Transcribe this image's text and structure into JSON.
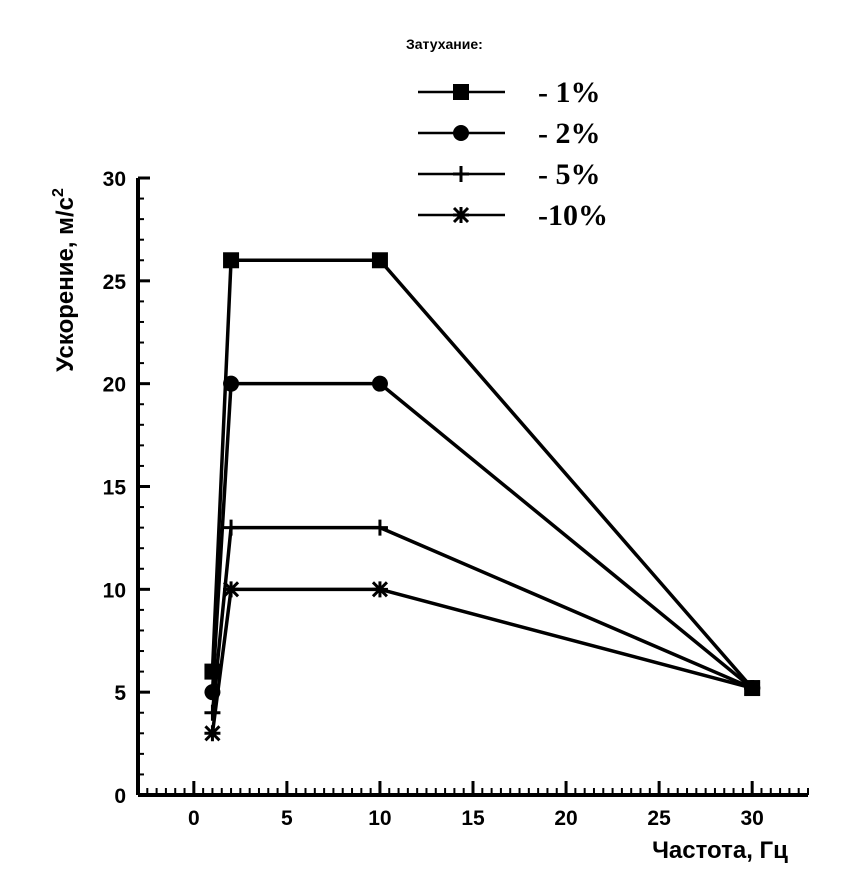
{
  "chart_data": {
    "type": "line",
    "xlabel": "Частота, Гц",
    "ylabel": "Ускорение, м/с",
    "ylabel_superscript": "2",
    "xlim": [
      -3,
      33
    ],
    "ylim": [
      0,
      30
    ],
    "x_ticks": [
      0,
      5,
      10,
      15,
      20,
      25,
      30
    ],
    "y_ticks": [
      0,
      5,
      10,
      15,
      20,
      25,
      30
    ],
    "grid": false,
    "legend_title": "Затухание:",
    "legend_position": "top-right",
    "x": [
      1,
      2,
      10,
      30
    ],
    "series": [
      {
        "name": "- 1%",
        "marker": "square",
        "values": [
          6,
          26,
          26,
          5.2
        ]
      },
      {
        "name": "- 2%",
        "marker": "circle",
        "values": [
          5,
          20,
          20,
          5.2
        ]
      },
      {
        "name": "- 5%",
        "marker": "plus",
        "values": [
          4,
          13,
          13,
          5.2
        ]
      },
      {
        "name": "-10%",
        "marker": "asterisk",
        "values": [
          3,
          10,
          10,
          5.2
        ]
      }
    ]
  }
}
